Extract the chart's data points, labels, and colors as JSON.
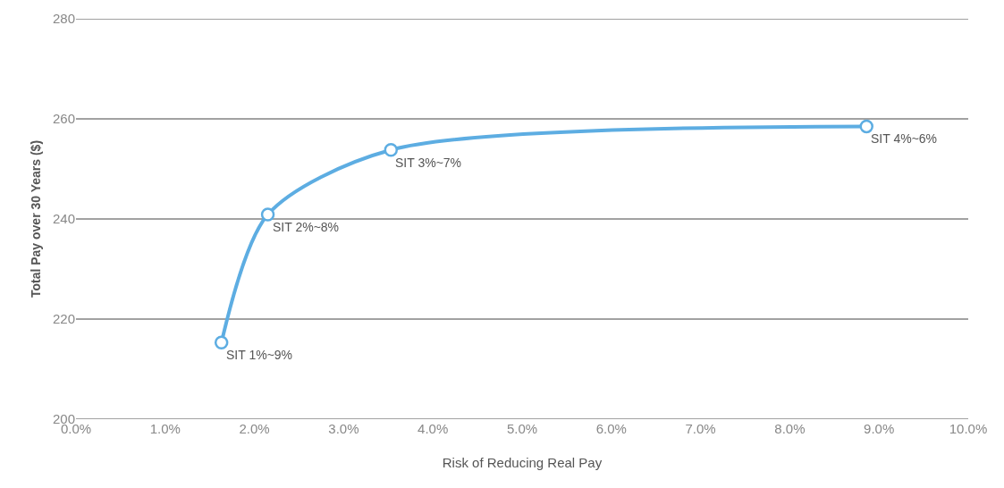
{
  "chart_data": {
    "type": "line",
    "xlabel": "Risk of Reducing Real Pay",
    "ylabel": "Total Pay over 30 Years ($)",
    "x": [
      1.63,
      2.15,
      3.53,
      8.86
    ],
    "series": [
      {
        "color": "#5dade2",
        "values": [
          215.3,
          240.9,
          253.8,
          258.5
        ]
      }
    ],
    "annotations": [
      {
        "text": "SIT 1%~9%",
        "x": 1.63,
        "y": 215.3
      },
      {
        "text": "SIT 2%~8%",
        "x": 2.15,
        "y": 240.9
      },
      {
        "text": "SIT 3%~7%",
        "x": 3.53,
        "y": 253.8
      },
      {
        "text": "SIT 4%~6%",
        "x": 8.86,
        "y": 258.5
      }
    ],
    "xlim": [
      0,
      10
    ],
    "xticks": [
      {
        "value": 0,
        "label": "0.0%"
      },
      {
        "value": 1,
        "label": "1.0%"
      },
      {
        "value": 2,
        "label": "2.0%"
      },
      {
        "value": 3,
        "label": "3.0%"
      },
      {
        "value": 4,
        "label": "4.0%"
      },
      {
        "value": 5,
        "label": "5.0%"
      },
      {
        "value": 6,
        "label": "6.0%"
      },
      {
        "value": 7,
        "label": "7.0%"
      },
      {
        "value": 8,
        "label": "8.0%"
      },
      {
        "value": 9,
        "label": "9.0%"
      },
      {
        "value": 10,
        "label": "10.0%"
      }
    ],
    "ylim": [
      200,
      280
    ],
    "yticks": [
      200,
      220,
      240,
      260,
      280
    ],
    "grid": "y",
    "marker": "circle",
    "line_style": "solid"
  }
}
